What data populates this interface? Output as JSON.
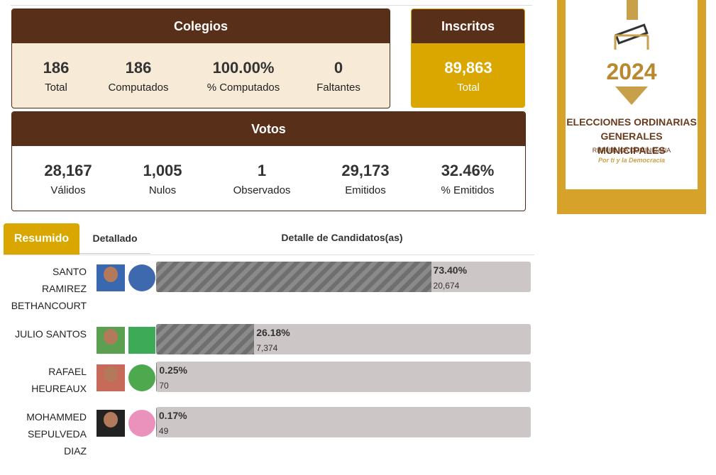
{
  "colegios": {
    "title": "Colegios",
    "stats": [
      {
        "value": "186",
        "label": "Total"
      },
      {
        "value": "186",
        "label": "Computados"
      },
      {
        "value": "100.00%",
        "label": "% Computados"
      },
      {
        "value": "0",
        "label": "Faltantes"
      }
    ]
  },
  "inscritos": {
    "title": "Inscritos",
    "value": "89,863",
    "label": "Total"
  },
  "votos": {
    "title": "Votos",
    "stats": [
      {
        "value": "28,167",
        "label": "Válidos"
      },
      {
        "value": "1,005",
        "label": "Nulos"
      },
      {
        "value": "1",
        "label": "Observados"
      },
      {
        "value": "29,173",
        "label": "Emitidos"
      },
      {
        "value": "32.46%",
        "label": "% Emitidos"
      }
    ]
  },
  "tabs": [
    "Resumido",
    "Detallado"
  ],
  "detail_title": "Detalle de Candidatos(as)",
  "candidates": [
    {
      "name": "SANTO RAMIREZ BETHANCOURT",
      "percent": 73.4,
      "percent_label": "73.40%",
      "votes": "20,674"
    },
    {
      "name": "JULIO SANTOS",
      "percent": 26.18,
      "percent_label": "26.18%",
      "votes": "7,374"
    },
    {
      "name": "RAFAEL HEUREAUX",
      "percent": 0.25,
      "percent_label": "0.25%",
      "votes": "70"
    },
    {
      "name": "MOHAMMED SEPULVEDA DIAZ",
      "percent": 0.17,
      "percent_label": "0.17%",
      "votes": "49"
    }
  ],
  "logo": {
    "year": "2024",
    "title_lines": [
      "ELECCIONES ORDINARIAS",
      "GENERALES MUNICIPALES"
    ],
    "country": "REPÚBLICA DOMINICANA",
    "slogan": "Por ti y la Democracia"
  }
}
